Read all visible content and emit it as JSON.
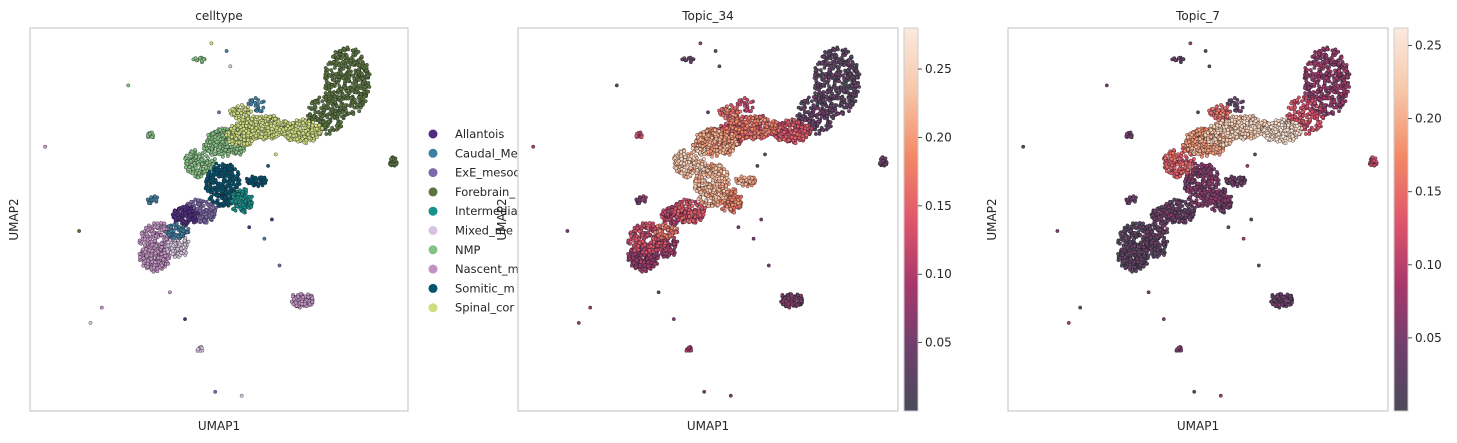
{
  "chart_data": [
    {
      "type": "scatter",
      "title": "celltype",
      "xlabel": "UMAP1",
      "ylabel": "UMAP2",
      "legend_placement": "right",
      "legend": [
        {
          "label": "Allantois",
          "color": "#4f2c82"
        },
        {
          "label": "Caudal_Me",
          "color": "#3f7fa3"
        },
        {
          "label": "ExE_mesoc",
          "color": "#7b68a8"
        },
        {
          "label": "Forebrain_",
          "color": "#5a7440"
        },
        {
          "label": "Intermedia",
          "color": "#17918c"
        },
        {
          "label": "Mixed_me",
          "color": "#d8c4e0"
        },
        {
          "label": "NMP",
          "color": "#86c186"
        },
        {
          "label": "Nascent_m",
          "color": "#c392c5"
        },
        {
          "label": "Somitic_m",
          "color": "#065370"
        },
        {
          "label": "Spinal_cor",
          "color": "#cfdd7e"
        }
      ]
    },
    {
      "type": "scatter",
      "title": "Topic_34",
      "xlabel": "UMAP1",
      "ylabel": "UMAP2",
      "colorbar_ticks": [
        0.05,
        0.1,
        0.15,
        0.2,
        0.25
      ],
      "colorbar_range": [
        0.0,
        0.28
      ]
    },
    {
      "type": "scatter",
      "title": "Topic_7",
      "xlabel": "UMAP1",
      "ylabel": "UMAP2",
      "colorbar_ticks": [
        0.05,
        0.1,
        0.15,
        0.2,
        0.25
      ],
      "colorbar_range": [
        0.0,
        0.262
      ]
    }
  ],
  "colors": {
    "frame": "#cccccc",
    "text": "#262626",
    "colormap": [
      "#4a4a5a",
      "#6f3f6c",
      "#a8386b",
      "#e0566b",
      "#f38a66",
      "#f7c6a8",
      "#fbeae0"
    ]
  }
}
